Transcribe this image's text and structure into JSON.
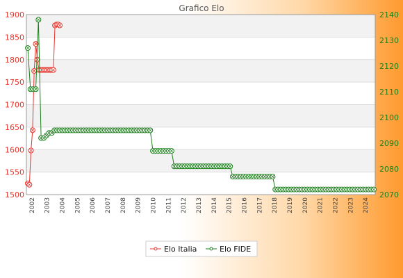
{
  "chart_data": {
    "type": "line",
    "title": "Grafico Elo",
    "grid": true,
    "legend_position": "bottom-center",
    "left_axis": {
      "range": [
        1500,
        1900
      ],
      "ticks": [
        1500,
        1550,
        1600,
        1650,
        1700,
        1750,
        1800,
        1850,
        1900
      ],
      "color": "#e8332a"
    },
    "right_axis": {
      "range": [
        2070,
        2140
      ],
      "ticks": [
        2070,
        2080,
        2090,
        2100,
        2110,
        2120,
        2130,
        2140
      ],
      "color": "#1a7f1a"
    },
    "x_labels": [
      "2002",
      "2003",
      "2004",
      "2005",
      "2006",
      "2007",
      "2008",
      "2009",
      "2010",
      "2011",
      "2012",
      "2013",
      "2014",
      "2015",
      "2016",
      "2017",
      "2018",
      "2019",
      "2020",
      "2021",
      "2022",
      "2023",
      "2024"
    ],
    "series": [
      {
        "name": "Elo Italia",
        "axis": "left",
        "color": "#e8332a",
        "values": [
          1525,
          1522,
          1598,
          1643,
          1775,
          1835,
          1800,
          1777,
          1777,
          1777,
          1777,
          1777,
          1777,
          1777,
          1777,
          1777,
          1777,
          1876,
          1878,
          1878,
          1876
        ]
      },
      {
        "name": "Elo FIDE",
        "axis": "right",
        "color": "#1a7f1a",
        "values": [
          2127,
          2111,
          2111,
          2111,
          2138,
          2092,
          2092,
          2093,
          2094,
          2094,
          2095,
          2095,
          2095,
          2095,
          2095,
          2095,
          2095,
          2095,
          2095,
          2095,
          2095,
          2095,
          2095,
          2095,
          2095,
          2095,
          2095,
          2095,
          2095,
          2095,
          2095,
          2095,
          2095,
          2095,
          2095,
          2095,
          2095,
          2095,
          2095,
          2095,
          2095,
          2095,
          2095,
          2095,
          2095,
          2095,
          2095,
          2087,
          2087,
          2087,
          2087,
          2087,
          2087,
          2087,
          2087,
          2081,
          2081,
          2081,
          2081,
          2081,
          2081,
          2081,
          2081,
          2081,
          2081,
          2081,
          2081,
          2081,
          2081,
          2081,
          2081,
          2081,
          2081,
          2081,
          2081,
          2081,
          2081,
          2077,
          2077,
          2077,
          2077,
          2077,
          2077,
          2077,
          2077,
          2077,
          2077,
          2077,
          2077,
          2077,
          2077,
          2077,
          2077,
          2072,
          2072,
          2072,
          2072,
          2072,
          2072,
          2072,
          2072,
          2072,
          2072,
          2072,
          2072,
          2072,
          2072,
          2072,
          2072,
          2072,
          2072,
          2072,
          2072,
          2072,
          2072,
          2072,
          2072,
          2072,
          2072,
          2072,
          2072,
          2072,
          2072,
          2072,
          2072,
          2072,
          2072,
          2072,
          2072,
          2072,
          2072
        ]
      }
    ]
  }
}
